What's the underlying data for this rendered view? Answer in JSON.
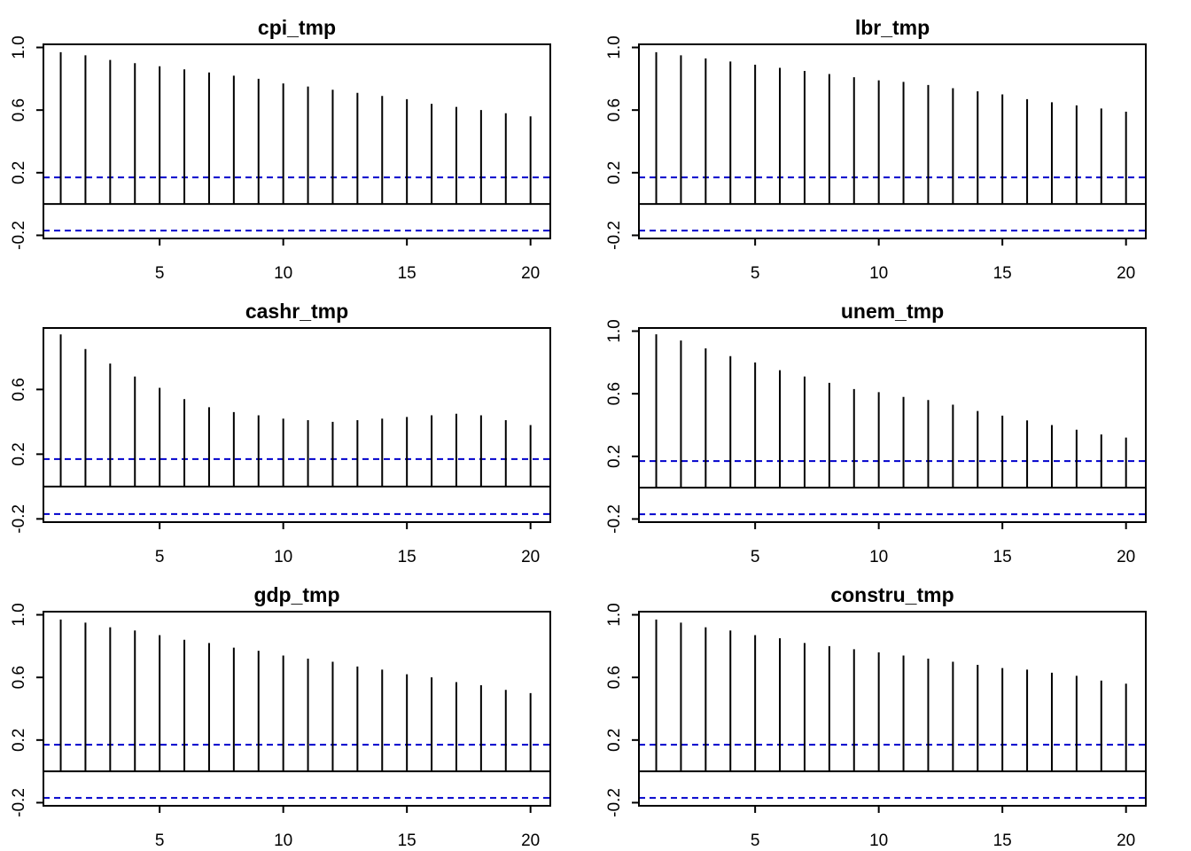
{
  "figure": {
    "background": "#ffffff"
  },
  "colors": {
    "bar": "#000000",
    "ci_line": "#0000cc",
    "zero_line": "#000000"
  },
  "chart_data": [
    {
      "type": "bar",
      "title": "cpi_tmp",
      "xlim": [
        0.3,
        20.8
      ],
      "ylim": [
        -0.22,
        1.02
      ],
      "xticks": [
        5,
        10,
        15,
        20
      ],
      "yticks": [
        1.0,
        0.6,
        0.2,
        -0.2
      ],
      "ytick_labels": [
        "1.0",
        "0.6",
        "0.2",
        "-0.2"
      ],
      "ci": 0.17,
      "lags": [
        1,
        2,
        3,
        4,
        5,
        6,
        7,
        8,
        9,
        10,
        11,
        12,
        13,
        14,
        15,
        16,
        17,
        18,
        19,
        20
      ],
      "values": [
        0.97,
        0.95,
        0.92,
        0.9,
        0.88,
        0.86,
        0.84,
        0.82,
        0.8,
        0.77,
        0.75,
        0.73,
        0.71,
        0.69,
        0.67,
        0.64,
        0.62,
        0.6,
        0.58,
        0.56
      ]
    },
    {
      "type": "bar",
      "title": "lbr_tmp",
      "xlim": [
        0.3,
        20.8
      ],
      "ylim": [
        -0.22,
        1.02
      ],
      "xticks": [
        5,
        10,
        15,
        20
      ],
      "yticks": [
        1.0,
        0.6,
        0.2,
        -0.2
      ],
      "ytick_labels": [
        "1.0",
        "0.6",
        "0.2",
        "-0.2"
      ],
      "ci": 0.17,
      "lags": [
        1,
        2,
        3,
        4,
        5,
        6,
        7,
        8,
        9,
        10,
        11,
        12,
        13,
        14,
        15,
        16,
        17,
        18,
        19,
        20
      ],
      "values": [
        0.97,
        0.95,
        0.93,
        0.91,
        0.89,
        0.87,
        0.85,
        0.83,
        0.81,
        0.79,
        0.78,
        0.76,
        0.74,
        0.72,
        0.7,
        0.67,
        0.65,
        0.63,
        0.61,
        0.59
      ]
    },
    {
      "type": "bar",
      "title": "cashr_tmp",
      "xlim": [
        0.3,
        20.8
      ],
      "ylim": [
        -0.22,
        0.98
      ],
      "xticks": [
        5,
        10,
        15,
        20
      ],
      "yticks": [
        0.6,
        0.2,
        -0.2
      ],
      "ytick_labels": [
        "0.6",
        "0.2",
        "-0.2"
      ],
      "ci": 0.17,
      "lags": [
        1,
        2,
        3,
        4,
        5,
        6,
        7,
        8,
        9,
        10,
        11,
        12,
        13,
        14,
        15,
        16,
        17,
        18,
        19,
        20
      ],
      "values": [
        0.94,
        0.85,
        0.76,
        0.68,
        0.61,
        0.54,
        0.49,
        0.46,
        0.44,
        0.42,
        0.41,
        0.4,
        0.41,
        0.42,
        0.43,
        0.44,
        0.45,
        0.44,
        0.41,
        0.38
      ]
    },
    {
      "type": "bar",
      "title": "unem_tmp",
      "xlim": [
        0.3,
        20.8
      ],
      "ylim": [
        -0.22,
        1.02
      ],
      "xticks": [
        5,
        10,
        15,
        20
      ],
      "yticks": [
        1.0,
        0.6,
        0.2,
        -0.2
      ],
      "ytick_labels": [
        "1.0",
        "0.6",
        "0.2",
        "-0.2"
      ],
      "ci": 0.17,
      "lags": [
        1,
        2,
        3,
        4,
        5,
        6,
        7,
        8,
        9,
        10,
        11,
        12,
        13,
        14,
        15,
        16,
        17,
        18,
        19,
        20
      ],
      "values": [
        0.98,
        0.94,
        0.89,
        0.84,
        0.8,
        0.75,
        0.71,
        0.67,
        0.63,
        0.61,
        0.58,
        0.56,
        0.53,
        0.49,
        0.46,
        0.43,
        0.4,
        0.37,
        0.34,
        0.32
      ]
    },
    {
      "type": "bar",
      "title": "gdp_tmp",
      "xlim": [
        0.3,
        20.8
      ],
      "ylim": [
        -0.22,
        1.02
      ],
      "xticks": [
        5,
        10,
        15,
        20
      ],
      "yticks": [
        1.0,
        0.6,
        0.2,
        -0.2
      ],
      "ytick_labels": [
        "1.0",
        "0.6",
        "0.2",
        "-0.2"
      ],
      "ci": 0.17,
      "lags": [
        1,
        2,
        3,
        4,
        5,
        6,
        7,
        8,
        9,
        10,
        11,
        12,
        13,
        14,
        15,
        16,
        17,
        18,
        19,
        20
      ],
      "values": [
        0.97,
        0.95,
        0.92,
        0.9,
        0.87,
        0.84,
        0.82,
        0.79,
        0.77,
        0.74,
        0.72,
        0.7,
        0.67,
        0.65,
        0.62,
        0.6,
        0.57,
        0.55,
        0.52,
        0.5
      ]
    },
    {
      "type": "bar",
      "title": "constru_tmp",
      "xlim": [
        0.3,
        20.8
      ],
      "ylim": [
        -0.22,
        1.02
      ],
      "xticks": [
        5,
        10,
        15,
        20
      ],
      "yticks": [
        1.0,
        0.6,
        0.2,
        -0.2
      ],
      "ytick_labels": [
        "1.0",
        "0.6",
        "0.2",
        "-0.2"
      ],
      "ci": 0.17,
      "lags": [
        1,
        2,
        3,
        4,
        5,
        6,
        7,
        8,
        9,
        10,
        11,
        12,
        13,
        14,
        15,
        16,
        17,
        18,
        19,
        20
      ],
      "values": [
        0.97,
        0.95,
        0.92,
        0.9,
        0.87,
        0.85,
        0.82,
        0.8,
        0.78,
        0.76,
        0.74,
        0.72,
        0.7,
        0.68,
        0.66,
        0.65,
        0.63,
        0.61,
        0.58,
        0.56
      ]
    }
  ]
}
